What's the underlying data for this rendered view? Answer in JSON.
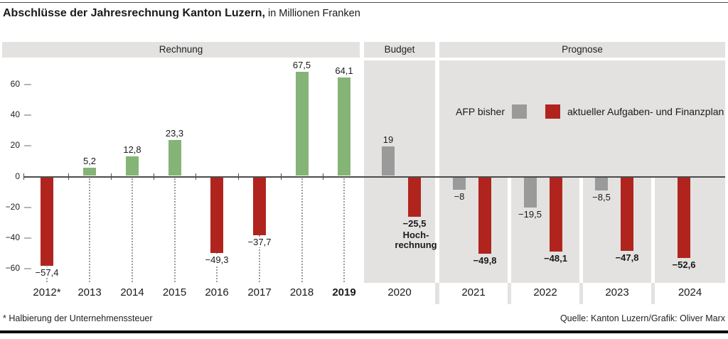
{
  "title": {
    "main": "Abschlüsse der Jahresrechnung Kanton Luzern,",
    "suffix": " in Millionen Franken"
  },
  "sections": [
    {
      "label": "Rechnung"
    },
    {
      "label": "Budget"
    },
    {
      "label": "Prognose"
    }
  ],
  "legend": [
    {
      "label": "AFP bisher",
      "color": "#9a9a9a"
    },
    {
      "label": "aktueller Aufgaben- und Finanzplan",
      "color": "#b1241e"
    }
  ],
  "colors": {
    "positive": "#85b477",
    "negative": "#b1241e",
    "afp_bisher": "#9a9a9a",
    "panel": "#e3e2e0"
  },
  "y_axis": {
    "ticks": [
      60,
      40,
      20,
      0,
      -20,
      -40,
      -60
    ],
    "labels": [
      "60",
      "40",
      "20",
      "0",
      "−20",
      "−40",
      "−60"
    ]
  },
  "chart_data": {
    "type": "bar",
    "title": "Abschlüsse der Jahresrechnung Kanton Luzern, in Millionen Franken",
    "ylabel": "Millionen Franken",
    "ylim": [
      -75,
      80
    ],
    "grid": false,
    "sections": [
      "Rechnung",
      "Budget",
      "Prognose"
    ],
    "rechnung": [
      {
        "year": "2012*",
        "value": -57.4,
        "label": "−57,4"
      },
      {
        "year": "2013",
        "value": 5.2,
        "label": "5,2"
      },
      {
        "year": "2014",
        "value": 12.8,
        "label": "12,8"
      },
      {
        "year": "2015",
        "value": 23.3,
        "label": "23,3"
      },
      {
        "year": "2016",
        "value": -49.3,
        "label": "−49,3"
      },
      {
        "year": "2017",
        "value": -37.7,
        "label": "−37,7"
      },
      {
        "year": "2018",
        "value": 67.5,
        "label": "67,5"
      },
      {
        "year": "2019",
        "value": 64.1,
        "label": "64,1",
        "bold_year": true
      }
    ],
    "budget_prognose": [
      {
        "year": "2020",
        "section": "Budget",
        "afp_bisher": 19,
        "afp_bisher_label": "19",
        "aktuell": -25.5,
        "aktuell_label": "−25,5",
        "note_lines": [
          "Hoch-",
          "rechnung"
        ]
      },
      {
        "year": "2021",
        "section": "Prognose",
        "afp_bisher": -8,
        "afp_bisher_label": "−8",
        "aktuell": -49.8,
        "aktuell_label": "−49,8"
      },
      {
        "year": "2022",
        "section": "Prognose",
        "afp_bisher": -19.5,
        "afp_bisher_label": "−19,5",
        "aktuell": -48.1,
        "aktuell_label": "−48,1"
      },
      {
        "year": "2023",
        "section": "Prognose",
        "afp_bisher": -8.5,
        "afp_bisher_label": "−8,5",
        "aktuell": -47.8,
        "aktuell_label": "−47,8"
      },
      {
        "year": "2024",
        "section": "Prognose",
        "aktuell": -52.6,
        "aktuell_label": "−52,6"
      }
    ]
  },
  "footnote": "* Halbierung der Unternehmenssteuer",
  "source": "Quelle: Kanton Luzern/Grafik: Oliver Marx"
}
